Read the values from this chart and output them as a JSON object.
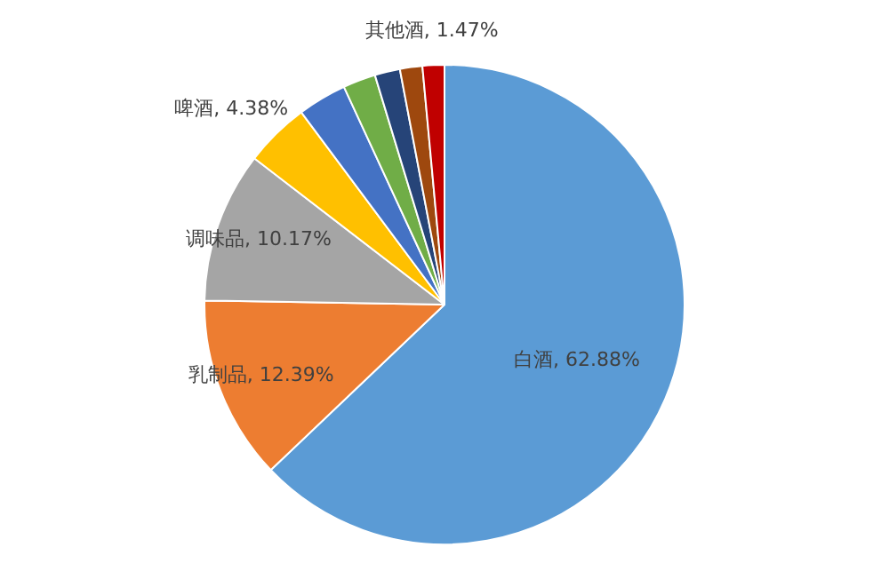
{
  "chart_data": {
    "type": "pie",
    "categories": [
      "白酒",
      "乳制品",
      "调味品",
      "啤酒",
      null,
      null,
      null,
      null,
      "其他酒"
    ],
    "values": [
      62.88,
      12.39,
      10.17,
      4.38,
      3.3,
      2.2,
      1.7,
      1.51,
      1.47
    ],
    "value_labels": [
      "62.88%",
      "12.39%",
      "10.17%",
      "4.38%",
      null,
      null,
      null,
      null,
      "1.47%"
    ],
    "colors": [
      "#5b9bd5",
      "#ed7d31",
      "#a5a5a5",
      "#ffc000",
      "#4472c4",
      "#70ad47",
      "#264478",
      "#9e480e",
      "#c00000"
    ],
    "legend": false
  }
}
